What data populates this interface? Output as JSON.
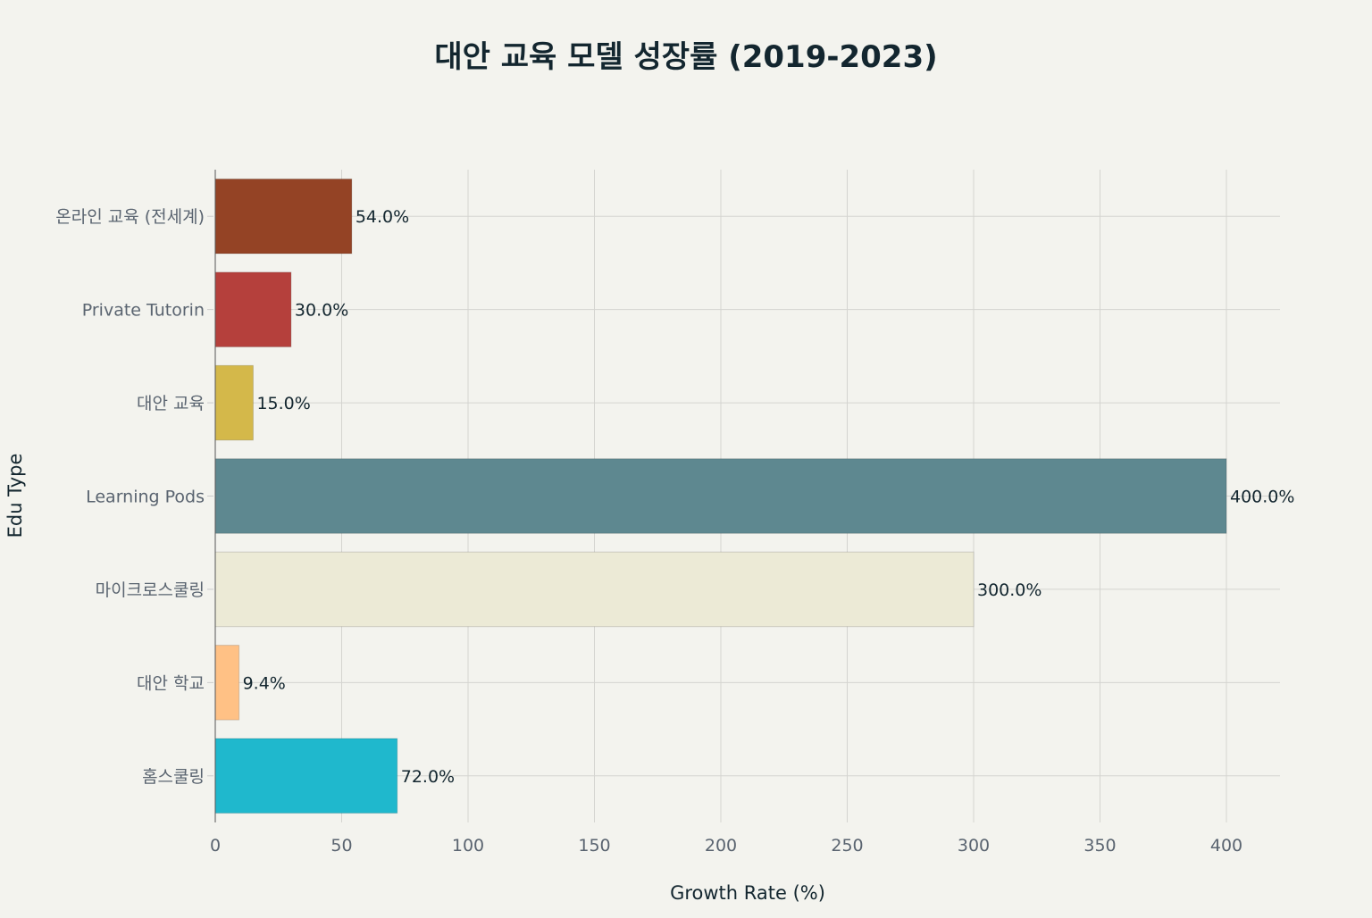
{
  "chart_data": {
    "type": "bar",
    "orientation": "horizontal",
    "title": "대안 교육 모델 성장률 (2019-2023)",
    "xlabel": "Growth Rate (%)",
    "ylabel": "Edu Type",
    "xlim": [
      0,
      421
    ],
    "xticks": [
      0,
      50,
      100,
      150,
      200,
      250,
      300,
      350,
      400
    ],
    "grid": true,
    "categories": [
      "온라인 교육 (전세계)",
      "Private Tutorin",
      "대안 교육",
      "Learning Pods",
      "마이크로스쿨링",
      "대안 학교",
      "홈스쿨링"
    ],
    "values": [
      54.0,
      30.0,
      15.0,
      400.0,
      300.0,
      9.4,
      72.0
    ],
    "data_labels": [
      "54.0%",
      "30.0%",
      "15.0%",
      "400.0%",
      "300.0%",
      "9.4%",
      "72.0%"
    ],
    "colors": [
      "#944325",
      "#b5403c",
      "#d4b84a",
      "#5e8890",
      "#ecead6",
      "#ffc185",
      "#1fb8cd"
    ]
  }
}
